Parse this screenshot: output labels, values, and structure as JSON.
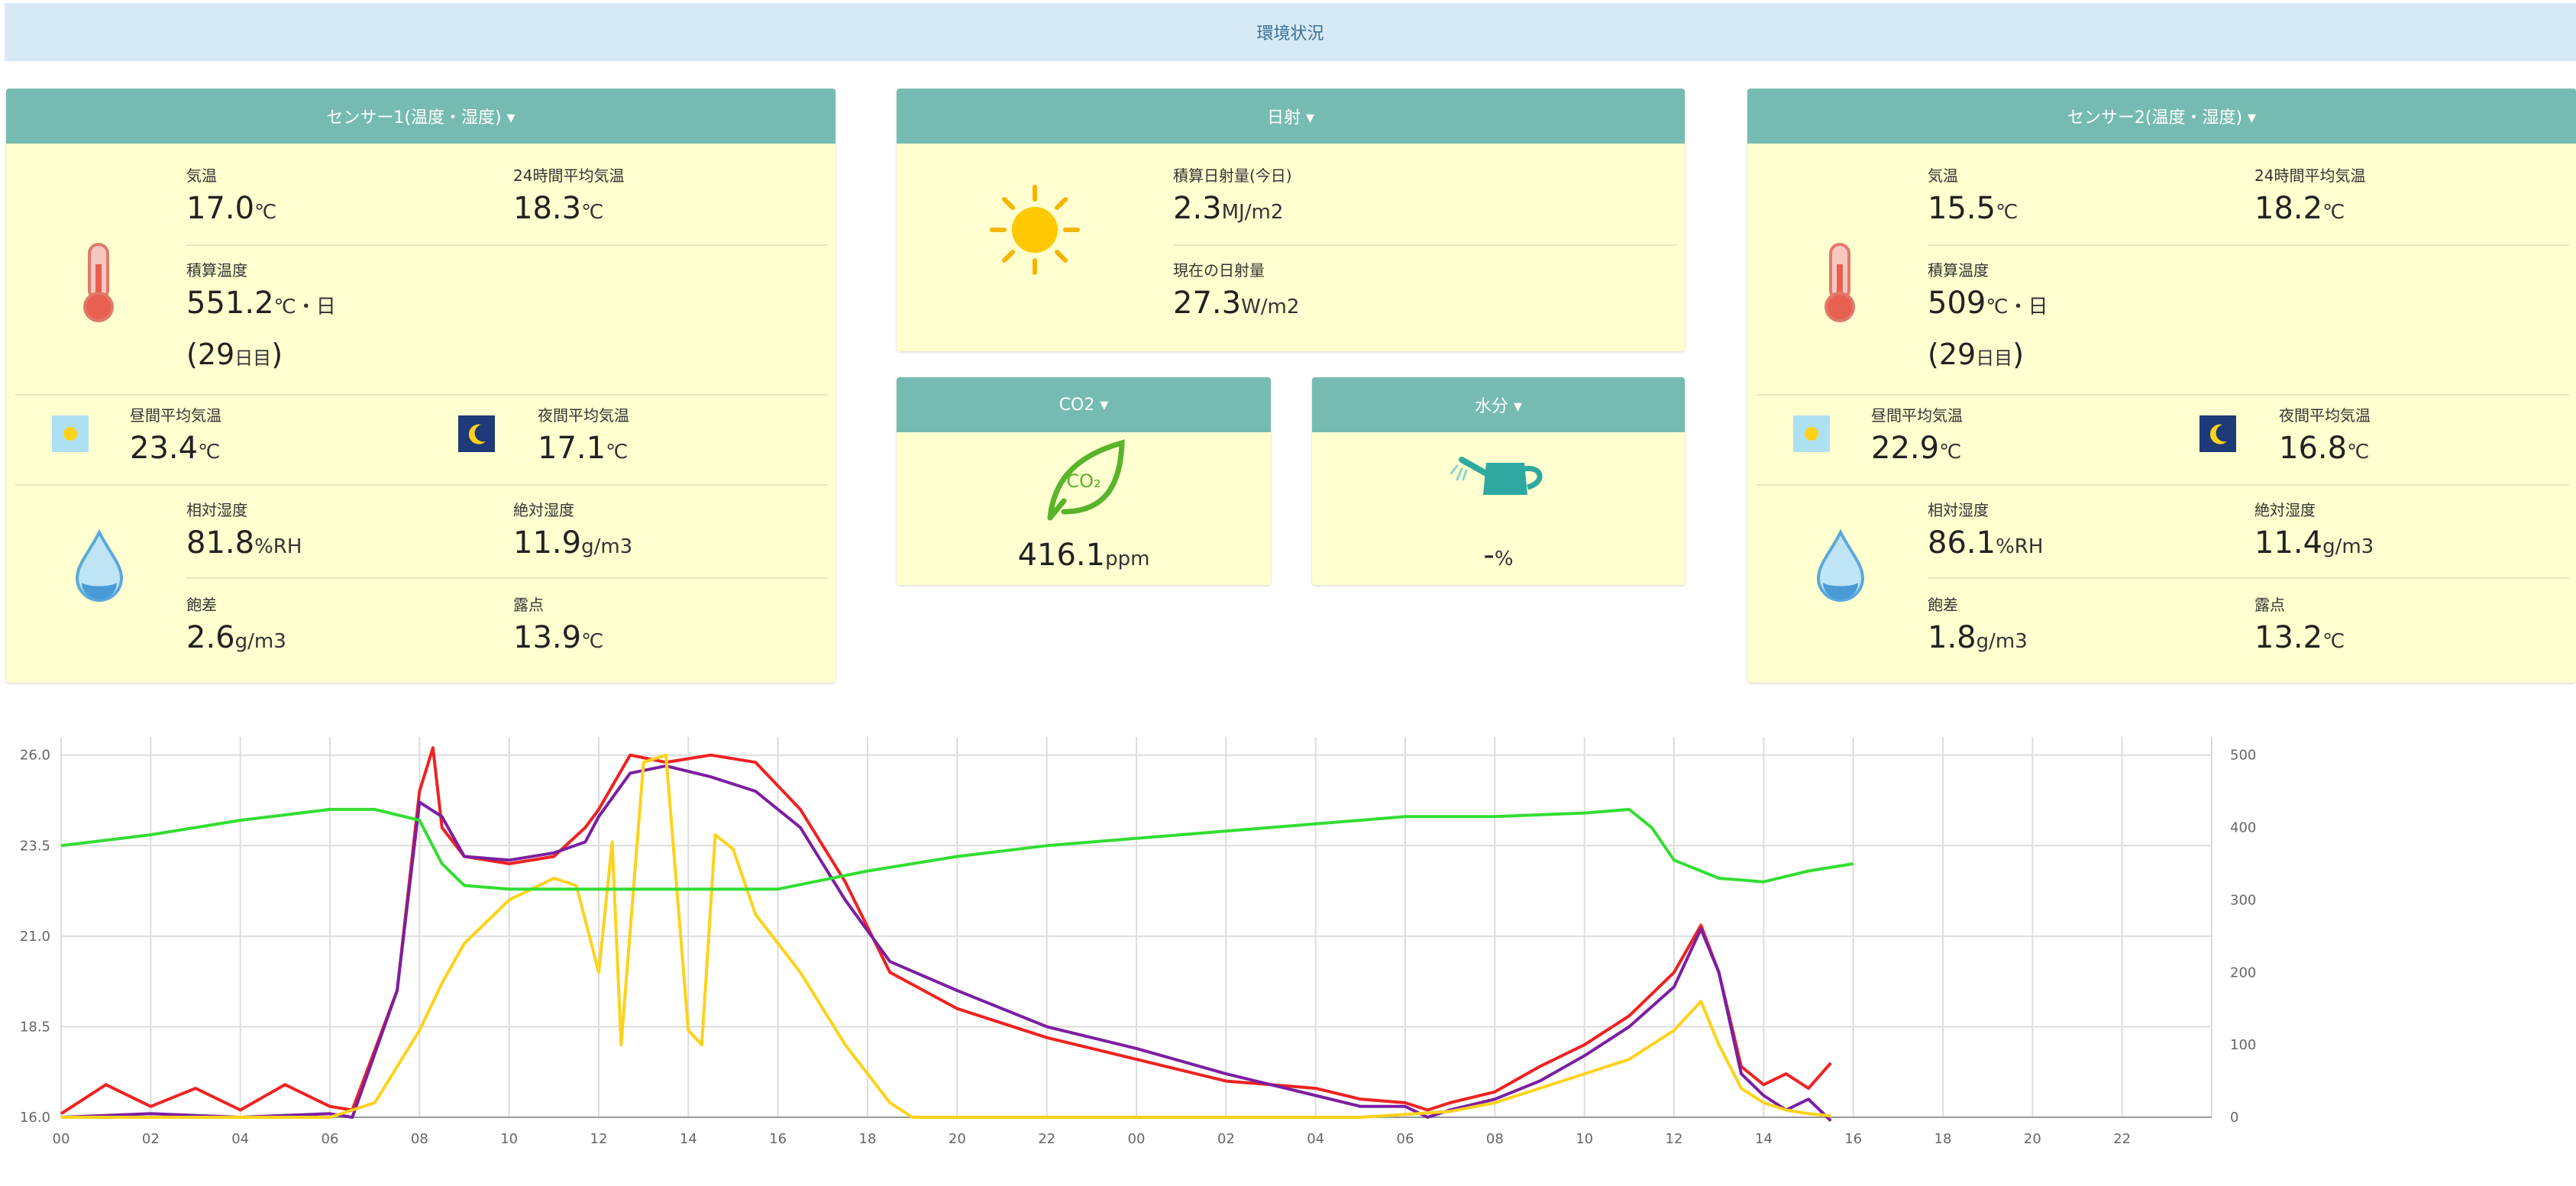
{
  "header": {
    "title": "環境状況"
  },
  "sensor1": {
    "title": "センサー1(温度・湿度) ▾",
    "temp": {
      "label": "気温",
      "value": "17.0",
      "unit": "℃"
    },
    "avg24": {
      "label": "24時間平均気温",
      "value": "18.3",
      "unit": "℃"
    },
    "accum": {
      "label": "積算温度",
      "value": "551.2",
      "unit": "℃・日",
      "days": "(29",
      "days_unit": "日目",
      "close": ")"
    },
    "day_avg": {
      "label": "昼間平均気温",
      "value": "23.4",
      "unit": "℃"
    },
    "night_avg": {
      "label": "夜間平均気温",
      "value": "17.1",
      "unit": "℃"
    },
    "rh": {
      "label": "相対湿度",
      "value": "81.8",
      "unit": "%RH"
    },
    "ah": {
      "label": "絶対湿度",
      "value": "11.9",
      "unit": "g/m3"
    },
    "deficit": {
      "label": "飽差",
      "value": "2.6",
      "unit": "g/m3"
    },
    "dew": {
      "label": "露点",
      "value": "13.9",
      "unit": "℃"
    }
  },
  "solar": {
    "title": "日射 ▾",
    "accum": {
      "label": "積算日射量(今日)",
      "value": "2.3",
      "unit": "MJ/m2"
    },
    "current": {
      "label": "現在の日射量",
      "value": "27.3",
      "unit": "W/m2"
    }
  },
  "co2": {
    "title": "CO2 ▾",
    "icon_text": "CO₂",
    "value": "416.1",
    "unit": "ppm"
  },
  "moisture": {
    "title": "水分 ▾",
    "value": "-",
    "unit": "%"
  },
  "sensor2": {
    "title": "センサー2(温度・湿度) ▾",
    "temp": {
      "label": "気温",
      "value": "15.5",
      "unit": "℃"
    },
    "avg24": {
      "label": "24時間平均気温",
      "value": "18.2",
      "unit": "℃"
    },
    "accum": {
      "label": "積算温度",
      "value": "509",
      "unit": "℃・日",
      "days": "(29",
      "days_unit": "日目",
      "close": ")"
    },
    "day_avg": {
      "label": "昼間平均気温",
      "value": "22.9",
      "unit": "℃"
    },
    "night_avg": {
      "label": "夜間平均気温",
      "value": "16.8",
      "unit": "℃"
    },
    "rh": {
      "label": "相対湿度",
      "value": "86.1",
      "unit": "%RH"
    },
    "ah": {
      "label": "絶対湿度",
      "value": "11.4",
      "unit": "g/m3"
    },
    "deficit": {
      "label": "飽差",
      "value": "1.8",
      "unit": "g/m3"
    },
    "dew": {
      "label": "露点",
      "value": "13.2",
      "unit": "℃"
    }
  },
  "colors": {
    "accent_header": "#76bbb1",
    "panel_bg": "#ffffcf",
    "topbar_bg": "#d6eaf6",
    "series_red": "#ee2222",
    "series_purple": "#7b1fa2",
    "series_yellow": "#ffd21a",
    "series_green": "#33dd33"
  },
  "icons": [
    "thermometer-icon",
    "sun-icon",
    "moon-icon",
    "water-drop-icon",
    "leaf-co2-icon",
    "watering-can-icon"
  ],
  "chart_data": {
    "type": "line",
    "title": "",
    "grid": true,
    "x_labels": [
      "00",
      "02",
      "04",
      "06",
      "08",
      "10",
      "12",
      "14",
      "16",
      "18",
      "20",
      "22",
      "00",
      "02",
      "04",
      "06",
      "08",
      "10",
      "12",
      "14",
      "16",
      "18",
      "20",
      "22"
    ],
    "x_range": [
      0,
      48
    ],
    "y_left": {
      "ticks": [
        "16.0",
        "18.5",
        "21.0",
        "23.5",
        "26.0"
      ],
      "range": [
        16,
        26.5
      ]
    },
    "y_right": {
      "ticks": [
        "0",
        "100",
        "200",
        "300",
        "400",
        "500"
      ],
      "range": [
        0,
        525
      ]
    },
    "series": [
      {
        "color": "#ee2222",
        "axis": "left",
        "points": [
          [
            0,
            16.1
          ],
          [
            1,
            16.9
          ],
          [
            2,
            16.3
          ],
          [
            3,
            16.8
          ],
          [
            4,
            16.2
          ],
          [
            5,
            16.9
          ],
          [
            6,
            16.3
          ],
          [
            6.5,
            16.2
          ],
          [
            7.5,
            19.5
          ],
          [
            8,
            25.0
          ],
          [
            8.3,
            26.2
          ],
          [
            8.5,
            24.0
          ],
          [
            9,
            23.2
          ],
          [
            10,
            23.0
          ],
          [
            11,
            23.2
          ],
          [
            11.7,
            24.0
          ],
          [
            12,
            24.5
          ],
          [
            12.7,
            26.0
          ],
          [
            13.5,
            25.8
          ],
          [
            14.5,
            26.0
          ],
          [
            15.5,
            25.8
          ],
          [
            16.5,
            24.5
          ],
          [
            17.5,
            22.5
          ],
          [
            18.5,
            20.0
          ],
          [
            20,
            19.0
          ],
          [
            22,
            18.2
          ],
          [
            24,
            17.6
          ],
          [
            26,
            17.0
          ],
          [
            27,
            16.9
          ],
          [
            28,
            16.8
          ],
          [
            29,
            16.5
          ],
          [
            30,
            16.4
          ],
          [
            30.5,
            16.2
          ],
          [
            31,
            16.4
          ],
          [
            32,
            16.7
          ],
          [
            33,
            17.4
          ],
          [
            34,
            18.0
          ],
          [
            35,
            18.8
          ],
          [
            36,
            20.0
          ],
          [
            36.6,
            21.3
          ],
          [
            37,
            20.0
          ],
          [
            37.5,
            17.4
          ],
          [
            38,
            16.9
          ],
          [
            38.5,
            17.2
          ],
          [
            39,
            16.8
          ],
          [
            39.5,
            17.5
          ]
        ]
      },
      {
        "color": "#7b1fa2",
        "axis": "left",
        "points": [
          [
            0,
            16.0
          ],
          [
            2,
            16.1
          ],
          [
            4,
            16.0
          ],
          [
            6,
            16.1
          ],
          [
            6.5,
            16.0
          ],
          [
            7.5,
            19.5
          ],
          [
            8,
            24.7
          ],
          [
            8.5,
            24.3
          ],
          [
            9,
            23.2
          ],
          [
            10,
            23.1
          ],
          [
            11,
            23.3
          ],
          [
            11.7,
            23.6
          ],
          [
            12,
            24.3
          ],
          [
            12.7,
            25.5
          ],
          [
            13.5,
            25.7
          ],
          [
            14.5,
            25.4
          ],
          [
            15.5,
            25.0
          ],
          [
            16.5,
            24.0
          ],
          [
            17.5,
            22.0
          ],
          [
            18.5,
            20.3
          ],
          [
            20,
            19.5
          ],
          [
            22,
            18.5
          ],
          [
            24,
            17.9
          ],
          [
            26,
            17.2
          ],
          [
            27,
            16.9
          ],
          [
            28,
            16.6
          ],
          [
            29,
            16.3
          ],
          [
            30,
            16.3
          ],
          [
            30.5,
            16.0
          ],
          [
            31,
            16.2
          ],
          [
            32,
            16.5
          ],
          [
            33,
            17.0
          ],
          [
            34,
            17.7
          ],
          [
            35,
            18.5
          ],
          [
            36,
            19.6
          ],
          [
            36.6,
            21.2
          ],
          [
            37,
            20.0
          ],
          [
            37.5,
            17.2
          ],
          [
            38,
            16.6
          ],
          [
            38.5,
            16.2
          ],
          [
            39,
            16.5
          ],
          [
            39.5,
            15.9
          ]
        ]
      },
      {
        "color": "#ffd21a",
        "axis": "right",
        "points": [
          [
            0,
            0
          ],
          [
            6,
            0
          ],
          [
            6.5,
            10
          ],
          [
            7,
            20
          ],
          [
            8,
            120
          ],
          [
            8.5,
            185
          ],
          [
            9,
            240
          ],
          [
            10,
            300
          ],
          [
            11,
            330
          ],
          [
            11.5,
            320
          ],
          [
            12,
            200
          ],
          [
            12.3,
            380
          ],
          [
            12.5,
            100
          ],
          [
            13,
            490
          ],
          [
            13.5,
            500
          ],
          [
            14,
            120
          ],
          [
            14.3,
            100
          ],
          [
            14.6,
            390
          ],
          [
            15,
            370
          ],
          [
            15.5,
            280
          ],
          [
            16.5,
            200
          ],
          [
            17.5,
            100
          ],
          [
            18.5,
            20
          ],
          [
            19,
            0
          ],
          [
            29,
            0
          ],
          [
            30,
            4
          ],
          [
            31,
            8
          ],
          [
            32,
            20
          ],
          [
            33,
            40
          ],
          [
            34,
            60
          ],
          [
            35,
            80
          ],
          [
            36,
            120
          ],
          [
            36.6,
            160
          ],
          [
            37,
            100
          ],
          [
            37.5,
            40
          ],
          [
            38,
            20
          ],
          [
            38.5,
            10
          ],
          [
            39,
            5
          ],
          [
            39.5,
            2
          ]
        ]
      },
      {
        "color": "#33dd33",
        "axis": "left",
        "points": [
          [
            0,
            23.5
          ],
          [
            2,
            23.8
          ],
          [
            4,
            24.2
          ],
          [
            6,
            24.5
          ],
          [
            7,
            24.5
          ],
          [
            8,
            24.2
          ],
          [
            8.5,
            23.0
          ],
          [
            9,
            22.4
          ],
          [
            10,
            22.3
          ],
          [
            12,
            22.3
          ],
          [
            14,
            22.3
          ],
          [
            16,
            22.3
          ],
          [
            18,
            22.8
          ],
          [
            20,
            23.2
          ],
          [
            22,
            23.5
          ],
          [
            24,
            23.7
          ],
          [
            26,
            23.9
          ],
          [
            28,
            24.1
          ],
          [
            30,
            24.3
          ],
          [
            32,
            24.3
          ],
          [
            34,
            24.4
          ],
          [
            35,
            24.5
          ],
          [
            35.5,
            24.0
          ],
          [
            36,
            23.1
          ],
          [
            37,
            22.6
          ],
          [
            38,
            22.5
          ],
          [
            39,
            22.8
          ],
          [
            40,
            23.0
          ]
        ]
      }
    ]
  }
}
